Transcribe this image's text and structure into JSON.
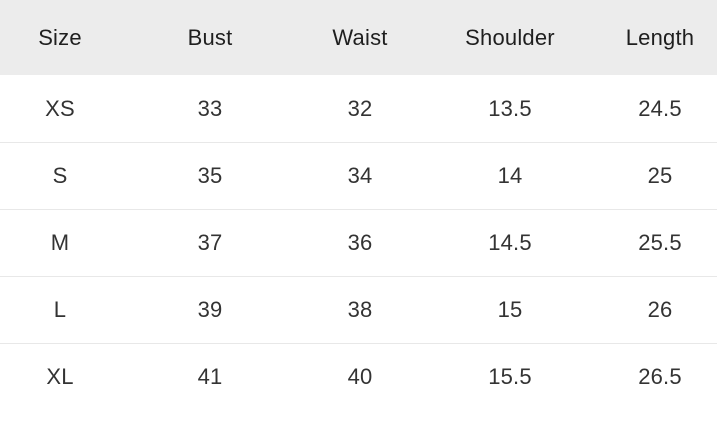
{
  "title": "Size chart",
  "colors": {
    "background": "#ffffff",
    "header_background": "#ececec",
    "divider": "#e8e8e8",
    "header_text": "#1f1f1f",
    "body_text": "#333333"
  },
  "chart_data": {
    "type": "table",
    "title": "",
    "columns": [
      "Size",
      "Bust",
      "Waist",
      "Shoulder",
      "Length"
    ],
    "rows": [
      [
        "XS",
        "33",
        "32",
        "13.5",
        "24.5"
      ],
      [
        "S",
        "35",
        "34",
        "14",
        "25"
      ],
      [
        "M",
        "37",
        "36",
        "14.5",
        "25.5"
      ],
      [
        "L",
        "39",
        "38",
        "15",
        "26"
      ],
      [
        "XL",
        "41",
        "40",
        "15.5",
        "26.5"
      ]
    ],
    "layout_hints": {
      "header_row_shaded": true,
      "row_dividers": "between body rows only",
      "column_alignment": "center",
      "grid": "horizontal dividers only, no vertical lines"
    }
  }
}
